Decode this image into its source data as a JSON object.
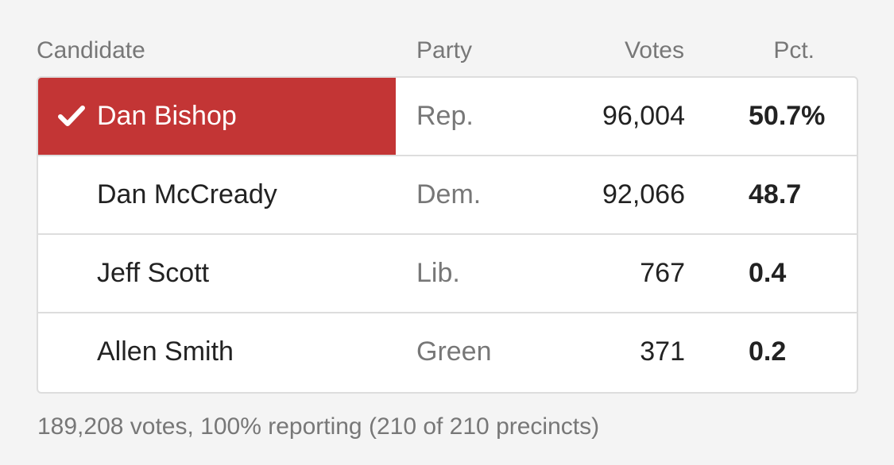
{
  "header": {
    "candidate": "Candidate",
    "party": "Party",
    "votes": "Votes",
    "pct": "Pct."
  },
  "rows": [
    {
      "name": "Dan Bishop",
      "party": "Rep.",
      "votes": "96,004",
      "pct": "50.7%",
      "winner": true
    },
    {
      "name": "Dan McCready",
      "party": "Dem.",
      "votes": "92,066",
      "pct": "48.7",
      "winner": false
    },
    {
      "name": "Jeff Scott",
      "party": "Lib.",
      "votes": "767",
      "pct": "0.4",
      "winner": false
    },
    {
      "name": "Allen Smith",
      "party": "Green",
      "votes": "371",
      "pct": "0.2",
      "winner": false
    }
  ],
  "footer": "189,208 votes, 100% reporting (210 of 210 precincts)",
  "colors": {
    "winner": "#c33535",
    "muted": "#777777",
    "text": "#222222",
    "border": "#dddddd"
  },
  "icons": {
    "winner_mark": "checkmark-icon"
  }
}
